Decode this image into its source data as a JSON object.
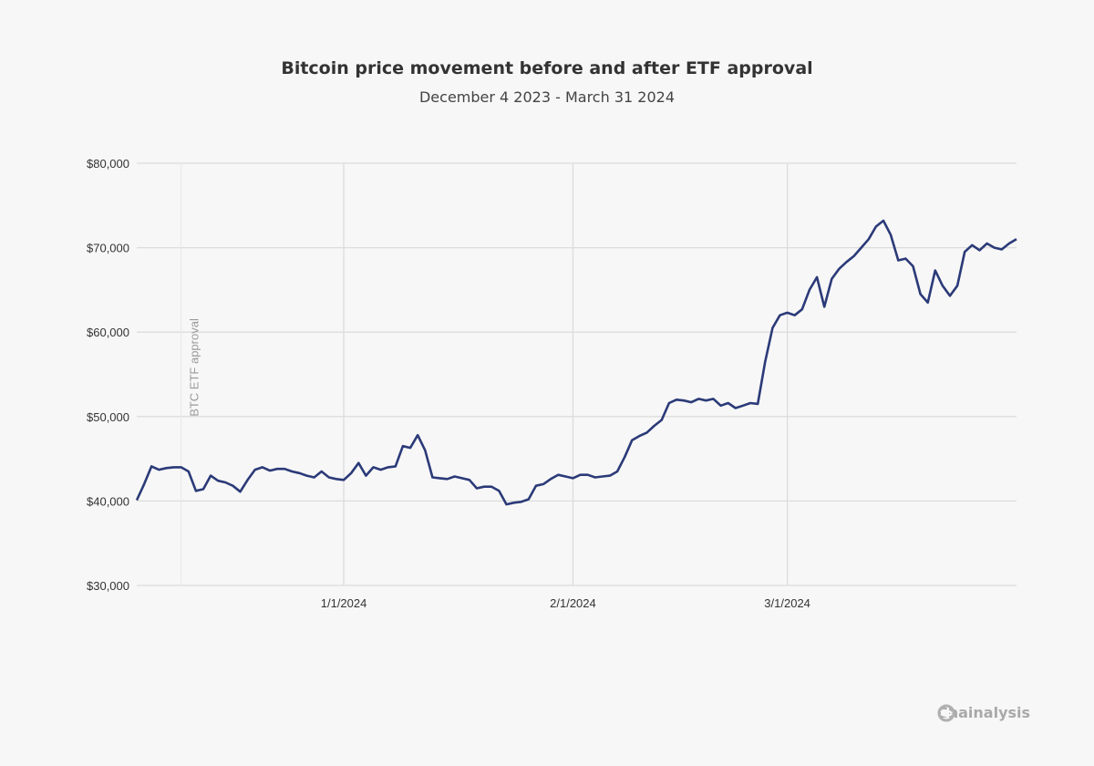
{
  "chart_data": {
    "type": "line",
    "title": "Bitcoin price movement before and after ETF approval",
    "subtitle": "December 4 2023 - March 31 2024",
    "xlabel": "",
    "ylabel": "",
    "xlim": [
      "2023-12-04",
      "2024-04-01"
    ],
    "ylim": [
      30000,
      80000
    ],
    "grid": true,
    "y_ticks": [
      {
        "value": 30000,
        "label": "$30,000"
      },
      {
        "value": 40000,
        "label": "$40,000"
      },
      {
        "value": 50000,
        "label": "$50,000"
      },
      {
        "value": 60000,
        "label": "$60,000"
      },
      {
        "value": 70000,
        "label": "$70,000"
      },
      {
        "value": 80000,
        "label": "$80,000"
      }
    ],
    "x_ticks": [
      {
        "value": "2024-01-01",
        "label": "1/1/2024"
      },
      {
        "value": "2024-02-01",
        "label": "2/1/2024"
      },
      {
        "value": "2024-03-01",
        "label": "3/1/2024"
      }
    ],
    "line_color": "#2b3a78",
    "annotation": {
      "date": "2023-12-10",
      "label": "BTC ETF approval"
    },
    "series": [
      {
        "x": [
          "2023-12-04",
          "2023-12-05",
          "2023-12-06",
          "2023-12-07",
          "2023-12-08",
          "2023-12-09",
          "2023-12-10",
          "2023-12-11",
          "2023-12-12",
          "2023-12-13",
          "2023-12-14",
          "2023-12-15",
          "2023-12-16",
          "2023-12-17",
          "2023-12-18",
          "2023-12-19",
          "2023-12-20",
          "2023-12-21",
          "2023-12-22",
          "2023-12-23",
          "2023-12-24",
          "2023-12-25",
          "2023-12-26",
          "2023-12-27",
          "2023-12-28",
          "2023-12-29",
          "2023-12-30",
          "2023-12-31",
          "2024-01-01",
          "2024-01-02",
          "2024-01-03",
          "2024-01-04",
          "2024-01-05",
          "2024-01-06",
          "2024-01-07",
          "2024-01-08",
          "2024-01-09",
          "2024-01-10",
          "2024-01-11",
          "2024-01-12",
          "2024-01-13",
          "2024-01-14",
          "2024-01-15",
          "2024-01-16",
          "2024-01-17",
          "2024-01-18",
          "2024-01-19",
          "2024-01-20",
          "2024-01-21",
          "2024-01-22",
          "2024-01-23",
          "2024-01-24",
          "2024-01-25",
          "2024-01-26",
          "2024-01-27",
          "2024-01-28",
          "2024-01-29",
          "2024-01-30",
          "2024-01-31",
          "2024-02-01",
          "2024-02-02",
          "2024-02-03",
          "2024-02-04",
          "2024-02-05",
          "2024-02-06",
          "2024-02-07",
          "2024-02-08",
          "2024-02-09",
          "2024-02-10",
          "2024-02-11",
          "2024-02-12",
          "2024-02-13",
          "2024-02-14",
          "2024-02-15",
          "2024-02-16",
          "2024-02-17",
          "2024-02-18",
          "2024-02-19",
          "2024-02-20",
          "2024-02-21",
          "2024-02-22",
          "2024-02-23",
          "2024-02-24",
          "2024-02-25",
          "2024-02-26",
          "2024-02-27",
          "2024-02-28",
          "2024-02-29",
          "2024-03-01",
          "2024-03-02",
          "2024-03-03",
          "2024-03-04",
          "2024-03-05",
          "2024-03-06",
          "2024-03-07",
          "2024-03-08",
          "2024-03-09",
          "2024-03-10",
          "2024-03-11",
          "2024-03-12",
          "2024-03-13",
          "2024-03-14",
          "2024-03-15",
          "2024-03-16",
          "2024-03-17",
          "2024-03-18",
          "2024-03-19",
          "2024-03-20",
          "2024-03-21",
          "2024-03-22",
          "2024-03-23",
          "2024-03-24",
          "2024-03-25",
          "2024-03-26",
          "2024-03-27",
          "2024-03-28",
          "2024-03-29",
          "2024-03-30",
          "2024-03-31",
          "2024-04-01"
        ],
        "y": [
          40100,
          42000,
          44100,
          43700,
          43900,
          44000,
          44000,
          43500,
          41200,
          41400,
          43000,
          42400,
          42200,
          41800,
          41100,
          42500,
          43700,
          44000,
          43600,
          43800,
          43800,
          43500,
          43300,
          43000,
          42800,
          43500,
          42800,
          42600,
          42500,
          43300,
          44500,
          43000,
          44000,
          43700,
          44000,
          44100,
          46500,
          46300,
          47800,
          46000,
          42800,
          42700,
          42600,
          42900,
          42700,
          42500,
          41500,
          41700,
          41700,
          41200,
          39600,
          39800,
          39900,
          40200,
          41800,
          42000,
          42600,
          43100,
          42900,
          42700,
          43100,
          43100,
          42800,
          42900,
          43000,
          43500,
          45200,
          47200,
          47700,
          48100,
          48900,
          49600,
          51600,
          52000,
          51900,
          51700,
          52100,
          51900,
          52100,
          51300,
          51600,
          51000,
          51300,
          51600,
          51500,
          56500,
          60500,
          62000,
          62300,
          62000,
          62700,
          65000,
          66500,
          63000,
          66300,
          67500,
          68300,
          69000,
          70000,
          71000,
          72500,
          73200,
          71500,
          68500,
          68700,
          67800,
          64500,
          63500,
          67300,
          65500,
          64300,
          65500,
          69500,
          70300,
          69700,
          70500,
          70000,
          69800,
          70500,
          71000
        ]
      }
    ]
  },
  "brand": {
    "name": "Chainalysis"
  }
}
